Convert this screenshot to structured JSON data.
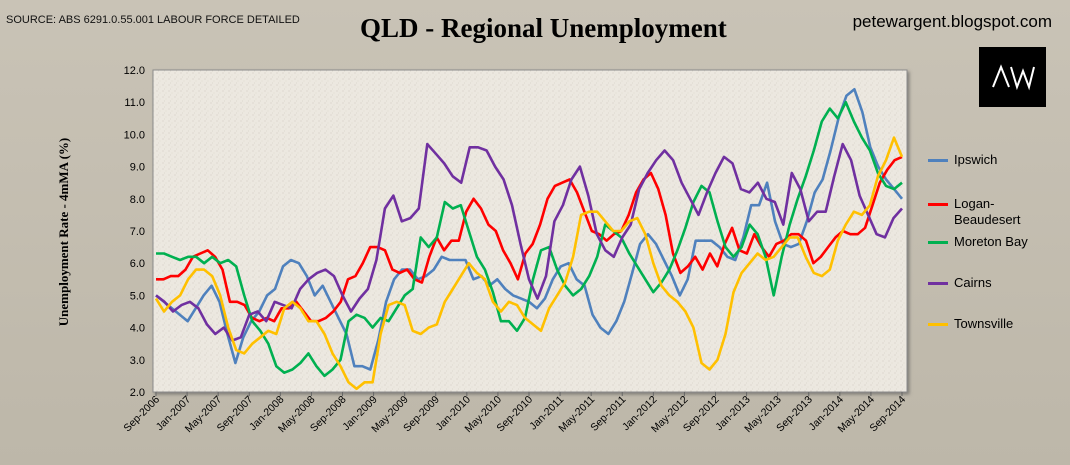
{
  "header": {
    "source": "SOURCE: ABS 6291.0.55.001 LABOUR FORCE DETAILED",
    "title": "QLD - Regional Unemployment",
    "blog": "petewargent.blogspot.com",
    "logo_text": "AW"
  },
  "chart_data": {
    "type": "line",
    "title": "QLD - Regional Unemployment",
    "ylabel": "Unemployment  Rate - 4mMA (%)",
    "xlabel": "",
    "ylim": [
      2.0,
      12.0
    ],
    "yticks": [
      "2.0",
      "3.0",
      "4.0",
      "5.0",
      "6.0",
      "7.0",
      "8.0",
      "9.0",
      "10.0",
      "11.0",
      "12.0"
    ],
    "xticks": [
      "Sep-2006",
      "Jan-2007",
      "May-2007",
      "Sep-2007",
      "Jan-2008",
      "May-2008",
      "Sep-2008",
      "Jan-2009",
      "May-2009",
      "Sep-2009",
      "Jan-2010",
      "May-2010",
      "Sep-2010",
      "Jan-2011",
      "May-2011",
      "Sep-2011",
      "Jan-2012",
      "May-2012",
      "Sep-2012",
      "Jan-2013",
      "May-2013",
      "Sep-2013",
      "Jan-2014",
      "May-2014",
      "Sep-2014"
    ],
    "grid": false,
    "legend_position": "right",
    "series": [
      {
        "name": "Ipswich",
        "color": "#4f81bd",
        "values": [
          5.0,
          4.8,
          4.6,
          4.4,
          4.2,
          4.6,
          5.0,
          5.3,
          4.8,
          3.8,
          2.9,
          3.7,
          4.2,
          4.5,
          5.0,
          5.2,
          5.9,
          6.1,
          6.0,
          5.6,
          5.0,
          5.3,
          4.8,
          4.3,
          3.8,
          2.8,
          2.8,
          2.7,
          3.6,
          4.8,
          5.5,
          5.8,
          5.8,
          5.5,
          5.6,
          5.8,
          6.2,
          6.1,
          6.1,
          6.1,
          5.5,
          5.6,
          5.3,
          5.5,
          5.2,
          5.0,
          4.9,
          4.8,
          4.6,
          4.9,
          5.5,
          5.9,
          6.0,
          5.5,
          5.3,
          4.4,
          4.0,
          3.8,
          4.2,
          4.8,
          5.7,
          6.6,
          6.9,
          6.6,
          6.1,
          5.6,
          5.0,
          5.5,
          6.7,
          6.7,
          6.7,
          6.5,
          6.2,
          6.1,
          6.8,
          7.8,
          7.8,
          8.5,
          7.3,
          6.6,
          6.5,
          6.6,
          7.3,
          8.2,
          8.6,
          9.5,
          10.5,
          11.2,
          11.4,
          10.7,
          9.6,
          9.0,
          8.6,
          8.3,
          8.0
        ]
      },
      {
        "name": "Logan-Beaudesert",
        "color": "#ff0000",
        "values": [
          5.5,
          5.5,
          5.6,
          5.6,
          5.8,
          6.2,
          6.3,
          6.4,
          6.2,
          5.8,
          4.8,
          4.8,
          4.7,
          4.3,
          4.2,
          4.3,
          4.2,
          4.6,
          4.6,
          4.8,
          4.5,
          4.2,
          4.2,
          4.3,
          4.5,
          4.8,
          5.5,
          5.6,
          6.0,
          6.5,
          6.5,
          6.4,
          5.8,
          5.7,
          5.8,
          5.5,
          5.4,
          6.2,
          6.8,
          6.4,
          6.7,
          6.7,
          7.6,
          8.0,
          7.7,
          7.2,
          7.0,
          6.4,
          6.0,
          5.5,
          6.3,
          6.6,
          7.2,
          8.0,
          8.4,
          8.5,
          8.6,
          8.2,
          7.6,
          7.0,
          6.9,
          6.7,
          6.9,
          7.0,
          7.5,
          8.2,
          8.6,
          8.8,
          8.3,
          7.5,
          6.3,
          5.7,
          5.9,
          6.2,
          5.8,
          6.3,
          5.9,
          6.6,
          7.1,
          6.4,
          6.3,
          6.9,
          6.5,
          6.2,
          6.6,
          6.7,
          6.9,
          6.9,
          6.7,
          6.0,
          6.2,
          6.5,
          6.8,
          7.0,
          6.9,
          6.9,
          7.1,
          7.8,
          8.5,
          8.9,
          9.2,
          9.3
        ]
      },
      {
        "name": "Moreton Bay",
        "color": "#00b050",
        "values": [
          6.3,
          6.3,
          6.2,
          6.1,
          6.2,
          6.2,
          6.0,
          6.2,
          6.0,
          6.1,
          5.9,
          5.0,
          4.2,
          3.9,
          3.5,
          2.8,
          2.6,
          2.7,
          2.9,
          3.2,
          2.8,
          2.5,
          2.7,
          3.0,
          4.2,
          4.4,
          4.3,
          4.0,
          4.3,
          4.2,
          4.6,
          5.0,
          5.2,
          6.8,
          6.5,
          6.8,
          7.9,
          7.7,
          7.8,
          7.0,
          6.2,
          5.8,
          5.1,
          4.2,
          4.2,
          3.9,
          4.3,
          5.5,
          6.4,
          6.5,
          5.8,
          5.3,
          5.0,
          5.2,
          5.6,
          6.2,
          7.2,
          7.0,
          6.8,
          6.3,
          5.9,
          5.5,
          5.1,
          5.4,
          5.8,
          6.4,
          7.1,
          7.9,
          8.4,
          8.2,
          7.3,
          6.5,
          6.2,
          6.5,
          7.2,
          6.9,
          6.2,
          5.0,
          6.2,
          7.2,
          8.0,
          8.7,
          9.5,
          10.4,
          10.8,
          10.5,
          11.0,
          10.4,
          9.9,
          9.5,
          8.8,
          8.4,
          8.3,
          8.5
        ]
      },
      {
        "name": "Cairns",
        "color": "#7030a0",
        "values": [
          5.0,
          4.8,
          4.5,
          4.7,
          4.8,
          4.6,
          4.1,
          3.8,
          4.0,
          3.6,
          3.7,
          4.4,
          4.5,
          4.2,
          4.8,
          4.7,
          4.6,
          5.2,
          5.5,
          5.7,
          5.8,
          5.6,
          5.0,
          4.5,
          4.9,
          5.2,
          6.1,
          7.7,
          8.1,
          7.3,
          7.4,
          7.7,
          9.7,
          9.4,
          9.1,
          8.7,
          8.5,
          9.6,
          9.6,
          9.5,
          9.0,
          8.6,
          7.8,
          6.6,
          5.5,
          4.9,
          5.6,
          7.3,
          7.8,
          8.6,
          9.0,
          8.1,
          6.9,
          6.4,
          6.2,
          6.8,
          7.2,
          8.3,
          8.8,
          9.2,
          9.5,
          9.2,
          8.5,
          8.0,
          7.5,
          8.2,
          8.8,
          9.3,
          9.1,
          8.3,
          8.2,
          8.5,
          8.0,
          7.9,
          7.2,
          8.8,
          8.3,
          7.3,
          7.6,
          7.6,
          8.7,
          9.7,
          9.2,
          8.1,
          7.5,
          6.9,
          6.8,
          7.4,
          7.7
        ]
      },
      {
        "name": "Townsville",
        "color": "#ffc000",
        "values": [
          4.9,
          4.5,
          4.8,
          5.0,
          5.5,
          5.8,
          5.8,
          5.6,
          5.0,
          4.0,
          3.3,
          3.2,
          3.5,
          3.7,
          3.9,
          3.8,
          4.6,
          4.8,
          4.6,
          4.2,
          4.2,
          3.8,
          3.2,
          2.8,
          2.3,
          2.1,
          2.3,
          2.3,
          3.8,
          4.7,
          4.8,
          4.7,
          3.9,
          3.8,
          4.0,
          4.1,
          4.8,
          5.2,
          5.6,
          6.0,
          5.7,
          5.5,
          4.8,
          4.5,
          4.8,
          4.7,
          4.3,
          4.1,
          3.9,
          4.6,
          5.0,
          5.4,
          6.2,
          7.5,
          7.6,
          7.6,
          7.3,
          7.0,
          7.0,
          7.3,
          7.4,
          6.9,
          6.0,
          5.3,
          5.0,
          4.8,
          4.5,
          4.0,
          2.9,
          2.7,
          3.0,
          3.8,
          5.1,
          5.7,
          6.0,
          6.3,
          6.1,
          6.2,
          6.5,
          6.8,
          6.8,
          6.2,
          5.7,
          5.6,
          5.8,
          6.7,
          7.2,
          7.6,
          7.5,
          7.8,
          8.7,
          9.2,
          9.9,
          9.3
        ]
      }
    ]
  }
}
